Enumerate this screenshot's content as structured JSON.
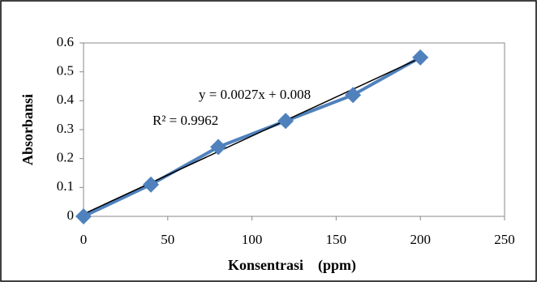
{
  "chart_data": {
    "type": "line",
    "x": [
      0,
      40,
      80,
      120,
      160,
      200
    ],
    "series": [
      {
        "color": "#4f81bd",
        "values": [
          0,
          0.11,
          0.24,
          0.33,
          0.42,
          0.55
        ]
      }
    ],
    "trendline": {
      "x": [
        0,
        200
      ],
      "values": [
        0.008,
        0.548
      ],
      "color": "#000000"
    },
    "annotations": [
      "y = 0.0027x + 0.008",
      "R² = 0.9962"
    ],
    "xlabel": "Konsentrasi    (ppm)",
    "ylabel": "Absorbansi",
    "xlim": [
      0,
      250
    ],
    "xticks": [
      0,
      50,
      100,
      150,
      200,
      250
    ],
    "ylim": [
      0,
      0.6
    ],
    "yticks": [
      0,
      0.1,
      0.2,
      0.3,
      0.4,
      0.5,
      0.6
    ],
    "marker": "diamond"
  }
}
